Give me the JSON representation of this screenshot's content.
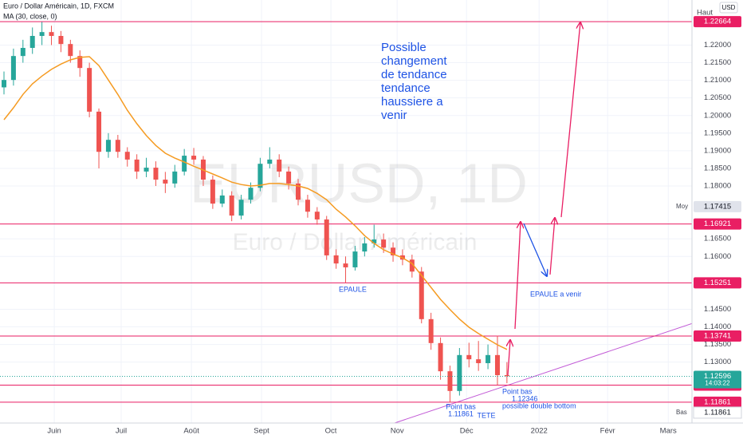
{
  "chart_data": {
    "type": "candlestick",
    "title": "Euro / Dollar Américain, 1D, FXCM",
    "watermark": "EURUSD, 1D",
    "watermark_subtitle": "Euro / Dollar Américain",
    "currency": "USD",
    "ylim": [
      1.1127,
      1.2328
    ],
    "xlim": [
      -0.42,
      72.5
    ],
    "grid": true,
    "yticks": [
      {
        "value": 1.22,
        "label": "1.22000"
      },
      {
        "value": 1.215,
        "label": "1.21500"
      },
      {
        "value": 1.21,
        "label": "1.21000"
      },
      {
        "value": 1.205,
        "label": "1.20500"
      },
      {
        "value": 1.2,
        "label": "1.20000"
      },
      {
        "value": 1.195,
        "label": "1.19500"
      },
      {
        "value": 1.19,
        "label": "1.19000"
      },
      {
        "value": 1.185,
        "label": "1.18500"
      },
      {
        "value": 1.18,
        "label": "1.18000"
      },
      {
        "value": 1.165,
        "label": "1.16500"
      },
      {
        "value": 1.16,
        "label": "1.16000"
      },
      {
        "value": 1.145,
        "label": "1.14500"
      },
      {
        "value": 1.14,
        "label": "1.14000"
      },
      {
        "value": 1.135,
        "label": "1.13500"
      },
      {
        "value": 1.13,
        "label": "1.13000"
      }
    ],
    "xticks": [
      {
        "value": 5.3,
        "label": "Juin"
      },
      {
        "value": 12.35,
        "label": "Juil"
      },
      {
        "value": 19.75,
        "label": "Août"
      },
      {
        "value": 27.14,
        "label": "Sept"
      },
      {
        "value": 34.45,
        "label": "Oct"
      },
      {
        "value": 41.43,
        "label": "Nov"
      },
      {
        "value": 48.74,
        "label": "Déc"
      },
      {
        "value": 56.39,
        "label": "2022"
      },
      {
        "value": 63.61,
        "label": "Févr"
      },
      {
        "value": 70.0,
        "label": "Mars"
      }
    ],
    "series": [
      {
        "name": "Euro / Dollar Américain, 1D, FXCM",
        "up_color": "#26a69a",
        "down_color": "#ef5350",
        "open": [
          1.208,
          1.2101,
          1.2169,
          1.2192,
          1.2226,
          1.2237,
          1.2226,
          1.2203,
          1.2169,
          1.2135,
          1.2011,
          1.1897,
          1.1931,
          1.1897,
          1.1875,
          1.1841,
          1.1852,
          1.1818,
          1.1807,
          1.1841,
          1.1886,
          1.1875,
          1.1818,
          1.175,
          1.1773,
          1.1716,
          1.1761,
          1.1795,
          1.1863,
          1.1875,
          1.1841,
          1.1807,
          1.1761,
          1.1727,
          1.1705,
          1.1603,
          1.158,
          1.1569,
          1.1614,
          1.1637,
          1.1648,
          1.1625,
          1.1603,
          1.1591,
          1.1557,
          1.1422,
          1.1354,
          1.1274,
          1.1218,
          1.132,
          1.1308,
          1.1297,
          1.132,
          1.1263
        ],
        "high": [
          1.2125,
          1.219,
          1.2215,
          1.225,
          1.2266,
          1.2255,
          1.224,
          1.2215,
          1.2185,
          1.215,
          1.202,
          1.195,
          1.1945,
          1.191,
          1.189,
          1.188,
          1.187,
          1.184,
          1.186,
          1.1905,
          1.1908,
          1.1885,
          1.183,
          1.179,
          1.1785,
          1.1775,
          1.181,
          1.188,
          1.191,
          1.189,
          1.1855,
          1.182,
          1.1775,
          1.174,
          1.1715,
          1.162,
          1.16,
          1.163,
          1.1655,
          1.169,
          1.1665,
          1.164,
          1.162,
          1.1605,
          1.157,
          1.144,
          1.137,
          1.129,
          1.134,
          1.1355,
          1.136,
          1.135,
          1.1375,
          1.13
        ],
        "low": [
          1.206,
          1.2085,
          1.215,
          1.2175,
          1.22,
          1.22,
          1.218,
          1.215,
          1.211,
          1.1995,
          1.185,
          1.188,
          1.188,
          1.1855,
          1.182,
          1.1825,
          1.18,
          1.178,
          1.1795,
          1.183,
          1.186,
          1.18,
          1.1735,
          1.174,
          1.17,
          1.1705,
          1.175,
          1.1785,
          1.185,
          1.1825,
          1.179,
          1.1745,
          1.171,
          1.169,
          1.159,
          1.1565,
          1.1525,
          1.156,
          1.16,
          1.1625,
          1.161,
          1.1585,
          1.1575,
          1.154,
          1.141,
          1.1335,
          1.125,
          1.1186,
          1.1205,
          1.1285,
          1.1275,
          1.128,
          1.1235,
          1.124
        ],
        "close": [
          1.2101,
          1.2169,
          1.2192,
          1.2226,
          1.2237,
          1.2226,
          1.2203,
          1.2169,
          1.2135,
          1.2011,
          1.1897,
          1.1931,
          1.1897,
          1.1875,
          1.1841,
          1.1852,
          1.1818,
          1.1807,
          1.1841,
          1.1886,
          1.1875,
          1.1818,
          1.175,
          1.1773,
          1.1716,
          1.1761,
          1.1795,
          1.1863,
          1.1875,
          1.1841,
          1.1807,
          1.1761,
          1.1727,
          1.1705,
          1.1603,
          1.158,
          1.1569,
          1.1614,
          1.1637,
          1.1648,
          1.1625,
          1.1603,
          1.1591,
          1.1557,
          1.1422,
          1.1354,
          1.1274,
          1.1218,
          1.132,
          1.1308,
          1.1297,
          1.132,
          1.1263,
          1.126
        ]
      },
      {
        "name": "MA (30, close, 0)",
        "color": "#f59b22",
        "values": [
          1.1988,
          1.2022,
          1.206,
          1.209,
          1.2112,
          1.2131,
          1.2146,
          1.2158,
          1.2165,
          1.2167,
          1.2142,
          1.2101,
          1.206,
          1.2015,
          1.1977,
          1.1943,
          1.1915,
          1.1893,
          1.1879,
          1.1868,
          1.1856,
          1.1845,
          1.1834,
          1.1823,
          1.1811,
          1.1804,
          1.18,
          1.1802,
          1.1807,
          1.1807,
          1.1804,
          1.18,
          1.1793,
          1.1779,
          1.1761,
          1.1734,
          1.1712,
          1.1687,
          1.1659,
          1.1637,
          1.1619,
          1.1607,
          1.1596,
          1.158,
          1.1546,
          1.1512,
          1.1478,
          1.1449,
          1.1422,
          1.1399,
          1.1381,
          1.1365,
          1.1349,
          1.1336
        ]
      }
    ],
    "price_lines": [
      1.22664,
      1.16921,
      1.15251,
      1.13741,
      1.12346,
      1.11861
    ],
    "line_color": "#e91e63",
    "high_label": "Haut",
    "average": {
      "label": "Moy",
      "value": 1.17415
    },
    "low": {
      "label": "Bas",
      "value": 1.11861
    },
    "last": {
      "value": 1.12596,
      "countdown": "14:03:22"
    },
    "annotations": {
      "main": [
        "Possible",
        "changement",
        "de tendance",
        "tendance",
        "haussiere a",
        "venir"
      ],
      "shoulder": "EPAULE",
      "future_shoulder": "EPAULE a venir",
      "head_low": [
        "Point bas",
        "1.11861"
      ],
      "head": "TETE",
      "second_low": [
        "Point bas",
        "1.12346",
        "possible double bottom"
      ]
    }
  }
}
